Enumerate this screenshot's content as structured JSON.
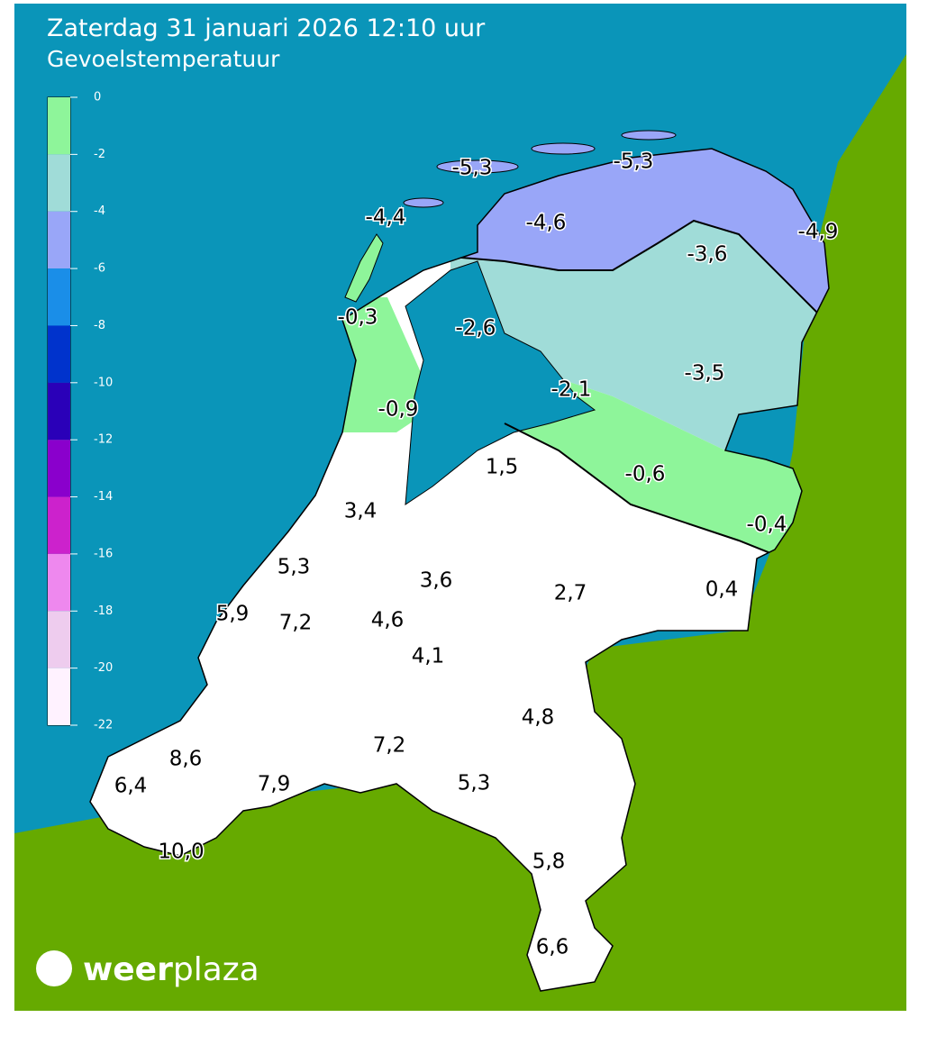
{
  "header": {
    "title": "Zaterdag 31 januari 2026 12:10 uur",
    "subtitle": "Gevoelstemperatuur"
  },
  "legend": {
    "ticks": [
      0,
      -2,
      -4,
      -6,
      -8,
      -10,
      -12,
      -14,
      -16,
      -18,
      -20,
      -22
    ],
    "colors": [
      "#8ef59a",
      "#a0dcd8",
      "#99a6f8",
      "#1a8ee8",
      "#0033cc",
      "#2a00b8",
      "#8a00cc",
      "#cc22cc",
      "#ee88ee",
      "#eeccee",
      "#fff2ff"
    ]
  },
  "labels": [
    "-5,3",
    "-5,3",
    "-4,4",
    "-4,6",
    "-4,9",
    "-3,6",
    "-0,3",
    "-2,6",
    "-3,5",
    "-2,1",
    "-0,9",
    "1,5",
    "-0,6",
    "-0,4",
    "3,4",
    "5,3",
    "3,6",
    "2,7",
    "0,4",
    "5,9",
    "7,2",
    "4,6",
    "4,1",
    "4,8",
    "7,2",
    "8,6",
    "6,4",
    "7,9",
    "5,3",
    "10,0",
    "5,8",
    "6,6"
  ],
  "brand": {
    "first": "weer",
    "second": "plaza"
  }
}
